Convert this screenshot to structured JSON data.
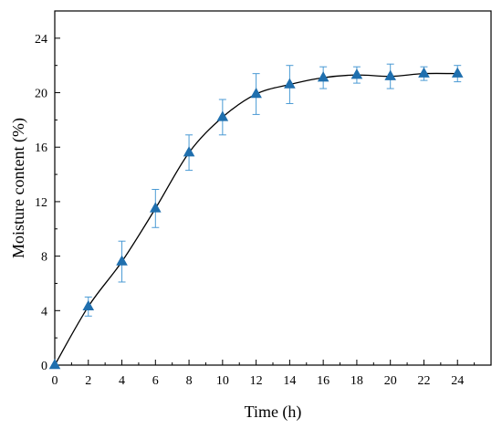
{
  "chart_data": {
    "type": "line",
    "xlabel": "Time (h)",
    "ylabel": "Moisture content (%)",
    "xlim": [
      0,
      26
    ],
    "ylim": [
      0,
      26
    ],
    "xticks": [
      0,
      2,
      4,
      6,
      8,
      10,
      12,
      14,
      16,
      18,
      20,
      22,
      24
    ],
    "yticks": [
      0,
      4,
      8,
      12,
      16,
      20,
      24
    ],
    "grid": false,
    "series": [
      {
        "x": [
          0,
          2,
          4,
          6,
          8,
          10,
          12,
          14,
          16,
          18,
          20,
          22,
          24
        ],
        "y": [
          0,
          4.3,
          7.6,
          11.5,
          15.6,
          18.2,
          19.9,
          20.6,
          21.1,
          21.3,
          21.2,
          21.4,
          21.4
        ],
        "err": [
          0,
          0.7,
          1.5,
          1.4,
          1.3,
          1.3,
          1.5,
          1.4,
          0.8,
          0.6,
          0.9,
          0.5,
          0.6
        ],
        "marker": "triangle",
        "marker_color": "#1f6fae",
        "errorbar_color": "#4a9ad4",
        "line_color": "#000000"
      }
    ]
  }
}
